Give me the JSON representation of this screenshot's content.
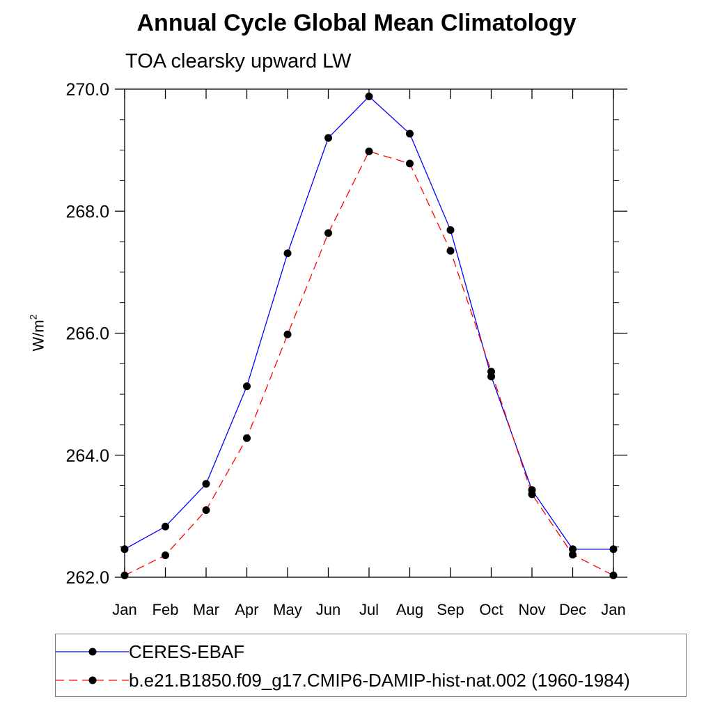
{
  "chart_data": {
    "type": "line",
    "title": "Annual Cycle Global Mean Climatology",
    "subtitle": "TOA clearsky upward LW",
    "ylabel": "W/m",
    "ylabel_sup": "2",
    "categories": [
      "Jan",
      "Feb",
      "Mar",
      "Apr",
      "May",
      "Jun",
      "Jul",
      "Aug",
      "Sep",
      "Oct",
      "Nov",
      "Dec",
      "Jan"
    ],
    "ylim": [
      262.0,
      270.0
    ],
    "yticks": [
      262.0,
      264.0,
      266.0,
      268.0,
      270.0
    ],
    "ytick_labels": [
      "262.0",
      "264.0",
      "266.0",
      "268.0",
      "270.0"
    ],
    "series": [
      {
        "name": "CERES-EBAF",
        "color": "#0000ff",
        "dash": "solid",
        "values": [
          262.46,
          262.83,
          263.53,
          265.13,
          267.31,
          269.2,
          269.88,
          269.27,
          267.69,
          265.29,
          263.43,
          262.46,
          262.46
        ]
      },
      {
        "name": "b.e21.B1850.f09_g17.CMIP6-DAMIP-hist-nat.002 (1960-1984)",
        "color": "#ff0000",
        "dash": "dashed",
        "values": [
          262.03,
          262.36,
          263.1,
          264.28,
          265.98,
          267.64,
          268.98,
          268.78,
          267.35,
          265.37,
          263.36,
          262.37,
          262.03
        ]
      }
    ],
    "grid": false,
    "legend_position": "bottom"
  }
}
